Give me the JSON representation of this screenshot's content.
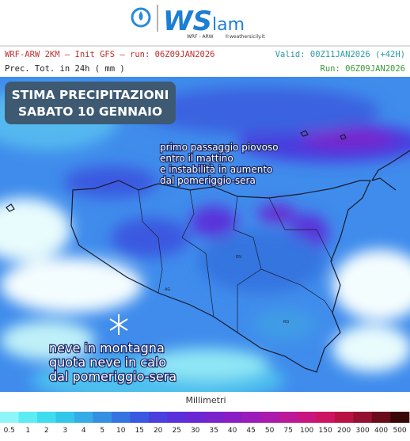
{
  "logo": {
    "brand": "WS",
    "suffix": "lam",
    "model": "WRF - ARW",
    "site": "©weathersicily.it"
  },
  "header": {
    "model_line": "WRF-ARW 2KM – Init GFS – run: 06Z09JAN2026",
    "valid": "Valid: 00Z11JAN2026 (+42H)",
    "field": "Prec. Tot. in 24h ( mm )",
    "run": "Run: 06Z09JAN2026"
  },
  "map": {
    "title_lines": [
      "STIMA PRECIPITAZIONI",
      "SABATO 10 GENNAIO"
    ],
    "note_rain": [
      "primo passaggio piovoso",
      "entro il mattino",
      "e instabilità in aumento",
      "dal pomeriggio-sera"
    ],
    "note_snow": [
      "neve in montagna",
      "quota neve in calo",
      "dal pomeriggio-sera"
    ],
    "province_labels": [
      "EN",
      "AG",
      "RG"
    ]
  },
  "legend": {
    "title": "Millimetri",
    "items": [
      {
        "label": "0.5",
        "color": "#8ff6f8"
      },
      {
        "label": "1",
        "color": "#5cecf2"
      },
      {
        "label": "2",
        "color": "#3fdcef"
      },
      {
        "label": "3",
        "color": "#33c6ea"
      },
      {
        "label": "4",
        "color": "#35ace6"
      },
      {
        "label": "5",
        "color": "#3590e2"
      },
      {
        "label": "10",
        "color": "#3574e0"
      },
      {
        "label": "15",
        "color": "#3a58e0"
      },
      {
        "label": "20",
        "color": "#4a40de"
      },
      {
        "label": "25",
        "color": "#5a30da"
      },
      {
        "label": "30",
        "color": "#6a28d4"
      },
      {
        "label": "35",
        "color": "#7a22cc"
      },
      {
        "label": "40",
        "color": "#8a1ec4"
      },
      {
        "label": "45",
        "color": "#9a1cba"
      },
      {
        "label": "50",
        "color": "#aa1aac"
      },
      {
        "label": "75",
        "color": "#bb189a"
      },
      {
        "label": "100",
        "color": "#c81680"
      },
      {
        "label": "150",
        "color": "#cc1462"
      },
      {
        "label": "200",
        "color": "#b81244"
      },
      {
        "label": "300",
        "color": "#951030"
      },
      {
        "label": "400",
        "color": "#6a0c1a"
      },
      {
        "label": "500",
        "color": "#3a0808"
      }
    ]
  }
}
